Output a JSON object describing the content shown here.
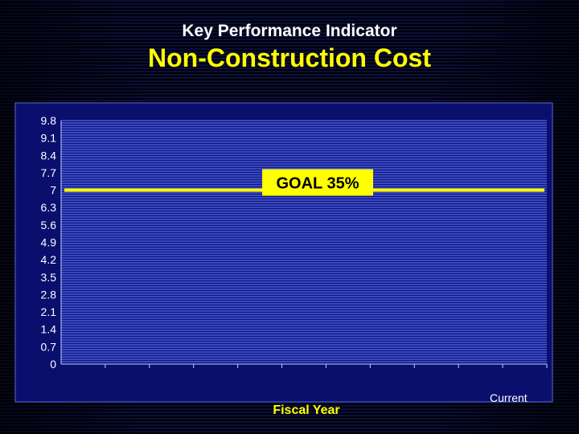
{
  "slide": {
    "supertitle": "Key Performance Indicator",
    "title": "Non-Construction Cost",
    "current_label": "Current"
  },
  "colors": {
    "plot_background": "#0a148c",
    "frame": "#0a0f6e",
    "gridline": "#8ea0ff",
    "goal_line": "#ffff00",
    "title": "#ffff00",
    "supertitle": "#ffffff"
  },
  "chart_data": {
    "type": "line",
    "title": "Non-Construction Cost",
    "xlabel": "Fiscal Year",
    "ylabel": "",
    "ylim": [
      0,
      9.8
    ],
    "yticks": [
      "0",
      "0.7",
      "1.4",
      "2.1",
      "2.8",
      "3.5",
      "4.2",
      "4.9",
      "5.6",
      "6.3",
      "7",
      "7.7",
      "8.4",
      "9.1",
      "9.8"
    ],
    "x_category_count": 11,
    "grid": true,
    "goal": {
      "label": "GOAL 35%",
      "value": 7
    },
    "series": []
  }
}
